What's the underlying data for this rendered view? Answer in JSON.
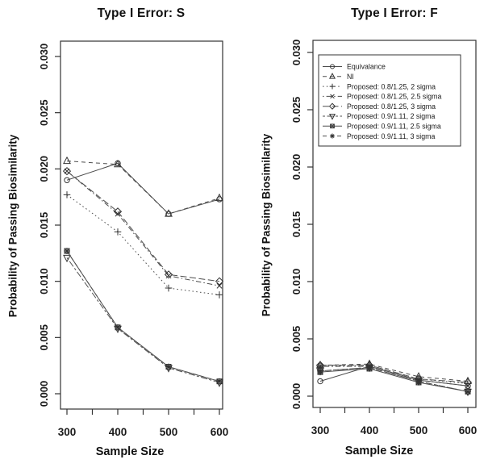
{
  "colors": {
    "axis": "#333333",
    "series_line": "#4d4d4d",
    "marker": "#333333",
    "text": "#1a1a1a",
    "background": "#ffffff"
  },
  "chart_data": [
    {
      "type": "line",
      "title": "Type I Error: S",
      "xlabel": "Sample Size",
      "ylabel": "Probability of Passing Biosimilarity",
      "x": [
        300,
        400,
        500,
        600
      ],
      "x_ticks": [
        300,
        350,
        400,
        450,
        500,
        550,
        600
      ],
      "x_tick_labels": [
        "300",
        "400",
        "500",
        "600"
      ],
      "y_ticks": [
        0.0,
        0.005,
        0.01,
        0.015,
        0.02,
        0.025,
        0.03
      ],
      "y_tick_labels": [
        "0.000",
        "0.005",
        "0.010",
        "0.015",
        "0.020",
        "0.025",
        "0.030"
      ],
      "ylim": [
        0,
        0.03
      ],
      "grid": false,
      "legend": {
        "show": false
      },
      "series": [
        {
          "name": "Equivalance",
          "marker": "circle",
          "linetype": "solid",
          "values": [
            0.019,
            0.0205,
            0.016,
            0.0173
          ]
        },
        {
          "name": "NI",
          "marker": "triangle-up",
          "linetype": "dashed",
          "values": [
            0.0207,
            0.0204,
            0.016,
            0.0174
          ]
        },
        {
          "name": "Proposed: 0.8/1.25, 2 sigma",
          "marker": "plus",
          "linetype": "dotted",
          "values": [
            0.0177,
            0.0144,
            0.0094,
            0.0088
          ]
        },
        {
          "name": "Proposed: 0.8/1.25, 2.5 sigma",
          "marker": "x",
          "linetype": "dotdash",
          "values": [
            0.0198,
            0.016,
            0.0105,
            0.0096
          ]
        },
        {
          "name": "Proposed: 0.8/1.25, 3 sigma",
          "marker": "diamond",
          "linetype": "longdash",
          "values": [
            0.0198,
            0.0162,
            0.0106,
            0.01
          ]
        },
        {
          "name": "Proposed: 0.9/1.11, 2 sigma",
          "marker": "triangle-down",
          "linetype": "twodash",
          "values": [
            0.0121,
            0.0058,
            0.0023,
            0.001
          ]
        },
        {
          "name": "Proposed: 0.9/1.11, 2.5 sigma",
          "marker": "square-x",
          "linetype": "solid",
          "values": [
            0.0127,
            0.0059,
            0.0024,
            0.0011
          ]
        },
        {
          "name": "Proposed: 0.9/1.11, 3 sigma",
          "marker": "asterisk",
          "linetype": "dashed",
          "values": [
            0.0127,
            0.0059,
            0.0024,
            0.0011
          ]
        }
      ]
    },
    {
      "type": "line",
      "title": "Type I Error: F",
      "xlabel": "Sample Size",
      "ylabel": "Probability of Passing Biosimilarity",
      "x": [
        300,
        400,
        500,
        600
      ],
      "x_ticks": [
        300,
        350,
        400,
        450,
        500,
        550,
        600
      ],
      "x_tick_labels": [
        "300",
        "400",
        "500",
        "600"
      ],
      "y_ticks": [
        0.0,
        0.005,
        0.01,
        0.015,
        0.02,
        0.025,
        0.03
      ],
      "y_tick_labels": [
        "0.000",
        "0.005",
        "0.010",
        "0.015",
        "0.020",
        "0.025",
        "0.030"
      ],
      "ylim": [
        0,
        0.03
      ],
      "grid": false,
      "legend": {
        "show": true,
        "position": "top-left"
      },
      "series": [
        {
          "name": "Equivalance",
          "marker": "circle",
          "linetype": "solid",
          "values": [
            0.0013,
            0.0026,
            0.0014,
            0.0009
          ]
        },
        {
          "name": "NI",
          "marker": "triangle-up",
          "linetype": "dashed",
          "values": [
            0.0027,
            0.0028,
            0.0017,
            0.0013
          ]
        },
        {
          "name": "Proposed: 0.8/1.25, 2 sigma",
          "marker": "plus",
          "linetype": "dotted",
          "values": [
            0.0026,
            0.0027,
            0.0015,
            0.0011
          ]
        },
        {
          "name": "Proposed: 0.8/1.25, 2.5 sigma",
          "marker": "x",
          "linetype": "dotdash",
          "values": [
            0.0026,
            0.0026,
            0.0014,
            0.0009
          ]
        },
        {
          "name": "Proposed: 0.8/1.25, 3 sigma",
          "marker": "diamond",
          "linetype": "longdash",
          "values": [
            0.0027,
            0.0027,
            0.0015,
            0.0012
          ]
        },
        {
          "name": "Proposed: 0.9/1.11, 2 sigma",
          "marker": "triangle-down",
          "linetype": "twodash",
          "values": [
            0.0022,
            0.0025,
            0.0013,
            0.0004
          ]
        },
        {
          "name": "Proposed: 0.9/1.11, 2.5 sigma",
          "marker": "square-x",
          "linetype": "solid",
          "values": [
            0.0021,
            0.0024,
            0.0012,
            0.0004
          ]
        },
        {
          "name": "Proposed: 0.9/1.11, 3 sigma",
          "marker": "asterisk",
          "linetype": "dashed",
          "values": [
            0.0022,
            0.0025,
            0.0013,
            0.0004
          ]
        }
      ]
    }
  ]
}
